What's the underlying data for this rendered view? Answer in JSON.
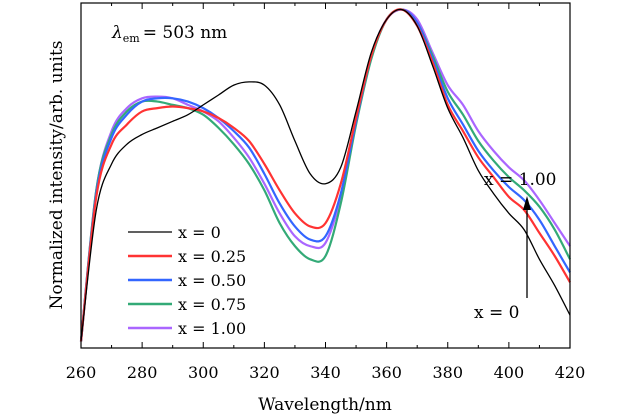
{
  "chart_data": {
    "type": "line",
    "title": "",
    "xlabel": "Wavelength/nm",
    "ylabel": "Normalized intensity/arb. units",
    "xlim": [
      260,
      420
    ],
    "ylim": [
      0,
      1.05
    ],
    "xticks": [
      260,
      280,
      300,
      320,
      340,
      360,
      380,
      400,
      420
    ],
    "grid": false,
    "legend_position": "center-left",
    "annotations": {
      "lambda_symbol": "λ",
      "lambda_sub": "em",
      "lambda_value": "= 503  nm",
      "arrow_top_label": "x = 1.00",
      "arrow_bottom_label": "x = 0"
    },
    "series": [
      {
        "name": "x = 0",
        "color": "#000000",
        "x": [
          260,
          265,
          270,
          275,
          280,
          285,
          290,
          295,
          300,
          305,
          310,
          315,
          320,
          325,
          330,
          335,
          340,
          345,
          350,
          355,
          360,
          365,
          370,
          375,
          380,
          385,
          390,
          395,
          400,
          405,
          410,
          415,
          420
        ],
        "y": [
          0.02,
          0.42,
          0.56,
          0.62,
          0.65,
          0.67,
          0.69,
          0.71,
          0.74,
          0.77,
          0.8,
          0.81,
          0.8,
          0.74,
          0.63,
          0.53,
          0.5,
          0.55,
          0.72,
          0.9,
          1.0,
          1.03,
          0.98,
          0.86,
          0.73,
          0.64,
          0.54,
          0.47,
          0.41,
          0.36,
          0.27,
          0.19,
          0.1
        ]
      },
      {
        "name": "x = 0.25",
        "color": "#ff3333",
        "x": [
          260,
          265,
          270,
          275,
          280,
          285,
          290,
          295,
          300,
          305,
          310,
          315,
          320,
          325,
          330,
          335,
          340,
          345,
          350,
          355,
          360,
          365,
          370,
          375,
          380,
          385,
          390,
          395,
          400,
          405,
          410,
          415,
          420
        ],
        "y": [
          0.02,
          0.46,
          0.62,
          0.68,
          0.72,
          0.73,
          0.735,
          0.73,
          0.72,
          0.7,
          0.67,
          0.63,
          0.56,
          0.48,
          0.41,
          0.37,
          0.38,
          0.5,
          0.7,
          0.89,
          1.0,
          1.03,
          0.98,
          0.87,
          0.74,
          0.66,
          0.58,
          0.52,
          0.46,
          0.42,
          0.35,
          0.28,
          0.2
        ]
      },
      {
        "name": "x = 0.50",
        "color": "#3366ff",
        "x": [
          260,
          265,
          270,
          275,
          280,
          285,
          290,
          295,
          300,
          305,
          310,
          315,
          320,
          325,
          330,
          335,
          340,
          345,
          350,
          355,
          360,
          365,
          370,
          375,
          380,
          385,
          390,
          395,
          400,
          405,
          410,
          415,
          420
        ],
        "y": [
          0.02,
          0.47,
          0.64,
          0.71,
          0.75,
          0.76,
          0.76,
          0.75,
          0.73,
          0.7,
          0.66,
          0.61,
          0.53,
          0.44,
          0.37,
          0.33,
          0.34,
          0.47,
          0.69,
          0.89,
          1.0,
          1.03,
          0.99,
          0.88,
          0.76,
          0.68,
          0.6,
          0.54,
          0.49,
          0.45,
          0.39,
          0.31,
          0.23
        ]
      },
      {
        "name": "x = 0.75",
        "color": "#33aa77",
        "x": [
          260,
          265,
          270,
          275,
          280,
          285,
          290,
          295,
          300,
          305,
          310,
          315,
          320,
          325,
          330,
          335,
          340,
          345,
          350,
          355,
          360,
          365,
          370,
          375,
          380,
          385,
          390,
          395,
          400,
          405,
          410,
          415,
          420
        ],
        "y": [
          0.02,
          0.48,
          0.65,
          0.72,
          0.75,
          0.75,
          0.74,
          0.73,
          0.71,
          0.67,
          0.62,
          0.56,
          0.48,
          0.38,
          0.31,
          0.27,
          0.28,
          0.44,
          0.68,
          0.88,
          1.0,
          1.03,
          0.99,
          0.89,
          0.78,
          0.71,
          0.63,
          0.57,
          0.52,
          0.48,
          0.43,
          0.36,
          0.27
        ]
      },
      {
        "name": "x = 1.00",
        "color": "#aa66ff",
        "x": [
          260,
          265,
          270,
          275,
          280,
          285,
          290,
          295,
          300,
          305,
          310,
          315,
          320,
          325,
          330,
          335,
          340,
          345,
          350,
          355,
          360,
          365,
          370,
          375,
          380,
          385,
          390,
          395,
          400,
          405,
          410,
          415,
          420
        ],
        "y": [
          0.02,
          0.48,
          0.66,
          0.73,
          0.76,
          0.765,
          0.76,
          0.74,
          0.72,
          0.69,
          0.64,
          0.58,
          0.5,
          0.41,
          0.34,
          0.31,
          0.32,
          0.46,
          0.69,
          0.89,
          1.0,
          1.03,
          1.0,
          0.9,
          0.8,
          0.74,
          0.66,
          0.6,
          0.55,
          0.51,
          0.45,
          0.38,
          0.31
        ]
      }
    ]
  }
}
